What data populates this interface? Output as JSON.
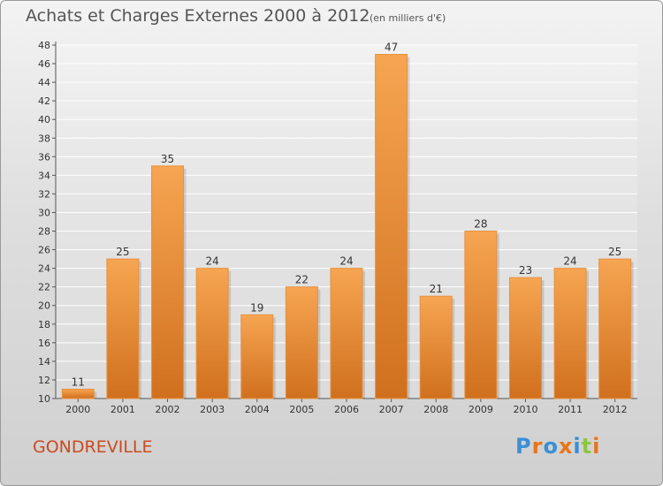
{
  "header": {
    "title": "Achats et Charges Externes 2000 à 2012",
    "unit": "(en milliers d'€)"
  },
  "footer": {
    "place": "GONDREVILLE",
    "brand_logo": "Proxiti"
  },
  "colors": {
    "bar_light": "#f6a552",
    "bar_dark": "#d0701e",
    "place_text": "#cc4a20",
    "logo_letters": [
      "#3a8fd6",
      "#e8751a",
      "#3a8fd6",
      "#e8751a",
      "#3a8fd6",
      "#8cc63f",
      "#e8751a"
    ]
  },
  "chart_data": {
    "type": "bar",
    "title": "Achats et Charges Externes 2000 à 2012",
    "subtitle": "(en milliers d'€)",
    "categories": [
      "2000",
      "2001",
      "2002",
      "2003",
      "2004",
      "2005",
      "2006",
      "2007",
      "2008",
      "2009",
      "2010",
      "2011",
      "2012"
    ],
    "values": [
      11,
      25,
      35,
      24,
      19,
      22,
      24,
      47,
      21,
      28,
      23,
      24,
      25
    ],
    "xlabel": "",
    "ylabel": "",
    "ylim": [
      10,
      48
    ],
    "yticks": [
      10,
      12,
      14,
      16,
      18,
      20,
      22,
      24,
      26,
      28,
      30,
      32,
      34,
      36,
      38,
      40,
      42,
      44,
      46,
      48
    ],
    "grid": true,
    "data_labels": true,
    "legend": "none"
  }
}
